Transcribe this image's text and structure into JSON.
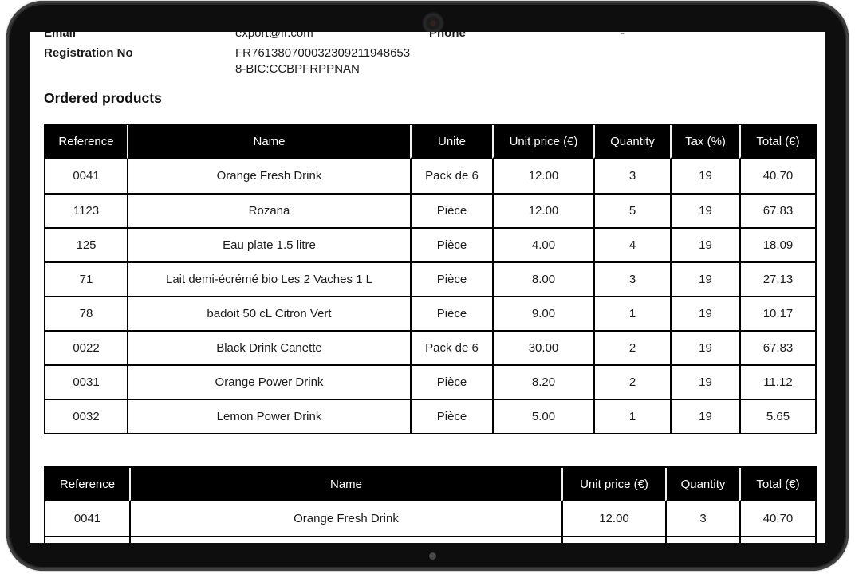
{
  "device": {
    "camera_icon": "front-camera",
    "home_indicator": "home-dot"
  },
  "document": {
    "info": {
      "email_label": "Email",
      "email_value": "export@fr.com",
      "phone_label": "Phone",
      "phone_value": "-",
      "registration_label": "Registration No",
      "registration_value_line1": "FR761380700032309211948653",
      "registration_value_line2": "8-BIC:CCBPFRPPNAN"
    },
    "section_title": "Ordered products",
    "products_table": {
      "headers": [
        "Reference",
        "Name",
        "Unite",
        "Unit price (€)",
        "Quantity",
        "Tax (%)",
        "Total (€)"
      ],
      "rows": [
        [
          "0041",
          "Orange Fresh Drink",
          "Pack de 6",
          "12.00",
          "3",
          "19",
          "40.70"
        ],
        [
          "1123",
          "Rozana",
          "Pièce",
          "12.00",
          "5",
          "19",
          "67.83"
        ],
        [
          "125",
          "Eau plate 1.5 litre",
          "Pièce",
          "4.00",
          "4",
          "19",
          "18.09"
        ],
        [
          "71",
          "Lait demi-écrémé bio Les 2 Vaches 1 L",
          "Pièce",
          "8.00",
          "3",
          "19",
          "27.13"
        ],
        [
          "78",
          "badoit 50 cL Citron Vert",
          "Pièce",
          "9.00",
          "1",
          "19",
          "10.17"
        ],
        [
          "0022",
          "Black Drink Canette",
          "Pack de 6",
          "30.00",
          "2",
          "19",
          "67.83"
        ],
        [
          "0031",
          "Orange Power Drink",
          "Pièce",
          "8.20",
          "2",
          "19",
          "11.12"
        ],
        [
          "0032",
          "Lemon Power Drink",
          "Pièce",
          "5.00",
          "1",
          "19",
          "5.65"
        ]
      ],
      "empty_trailing_rows": 0
    },
    "summary_table": {
      "headers": [
        "Reference",
        "Name",
        "Unit price (€)",
        "Quantity",
        "Total (€)"
      ],
      "rows": [
        [
          "0041",
          "Orange Fresh Drink",
          "12.00",
          "3",
          "40.70"
        ]
      ],
      "empty_trailing_rows": 1
    },
    "colors": {
      "table_header_bg": "#000000",
      "table_header_text": "#ffffff",
      "body_text": "#1b1b1b"
    }
  }
}
